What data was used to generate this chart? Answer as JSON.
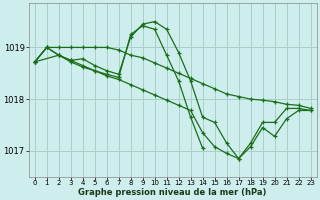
{
  "title": "Graphe pression niveau de la mer (hPa)",
  "bg_color": "#ceeeed",
  "grid_color": "#a8cfc8",
  "line_color": "#1a6e1a",
  "marker_color": "#1a6e1a",
  "xlim": [
    -0.5,
    23.5
  ],
  "ylim": [
    1016.5,
    1019.85
  ],
  "yticks": [
    1017,
    1018,
    1019
  ],
  "xticks": [
    0,
    1,
    2,
    3,
    4,
    5,
    6,
    7,
    8,
    9,
    10,
    11,
    12,
    13,
    14,
    15,
    16,
    17,
    18,
    19,
    20,
    21,
    22,
    23
  ],
  "lines": [
    {
      "x": [
        0,
        1,
        2,
        3,
        4,
        5,
        6,
        7,
        8,
        9,
        10,
        11,
        12,
        13,
        14,
        15,
        16,
        17,
        18,
        19,
        20,
        21,
        22,
        23
      ],
      "y": [
        1018.72,
        1019.0,
        1019.0,
        1019.0,
        1019.0,
        1019.0,
        1019.0,
        1018.95,
        1018.85,
        1018.8,
        1018.7,
        1018.6,
        1018.5,
        1018.4,
        1018.3,
        1018.2,
        1018.1,
        1018.05,
        1018.0,
        1017.98,
        1017.95,
        1017.9,
        1017.88,
        1017.82
      ]
    },
    {
      "x": [
        0,
        2,
        3,
        4,
        5,
        6,
        7,
        8,
        9,
        10,
        11,
        12,
        13,
        14,
        15,
        16,
        17,
        18,
        19,
        20,
        21,
        22,
        23
      ],
      "y": [
        1018.72,
        1018.85,
        1018.75,
        1018.78,
        1018.65,
        1018.55,
        1018.48,
        1019.2,
        1019.45,
        1019.5,
        1019.35,
        1018.9,
        1018.35,
        1017.65,
        1017.55,
        1017.15,
        1016.85,
        1017.15,
        1017.55,
        1017.55,
        1017.82,
        1017.82,
        1017.78
      ]
    },
    {
      "x": [
        0,
        1,
        2,
        3,
        4,
        5,
        6,
        7,
        8,
        9,
        10,
        11,
        12,
        13,
        14
      ],
      "y": [
        1018.72,
        1019.0,
        1018.85,
        1018.72,
        1018.62,
        1018.55,
        1018.48,
        1018.42,
        1019.25,
        1019.42,
        1019.35,
        1018.85,
        1018.35,
        1017.65,
        1017.05
      ]
    },
    {
      "x": [
        0,
        1,
        2,
        3,
        4,
        5,
        6,
        7,
        8,
        9,
        10,
        11,
        12,
        13,
        14,
        15,
        16,
        17,
        18,
        19,
        20,
        21,
        22,
        23
      ],
      "y": [
        1018.72,
        1019.0,
        1018.85,
        1018.75,
        1018.65,
        1018.55,
        1018.45,
        1018.38,
        1018.28,
        1018.18,
        1018.08,
        1017.98,
        1017.88,
        1017.78,
        1017.35,
        1017.08,
        1016.95,
        1016.85,
        1017.08,
        1017.45,
        1017.28,
        1017.62,
        1017.78,
        1017.78
      ]
    }
  ]
}
